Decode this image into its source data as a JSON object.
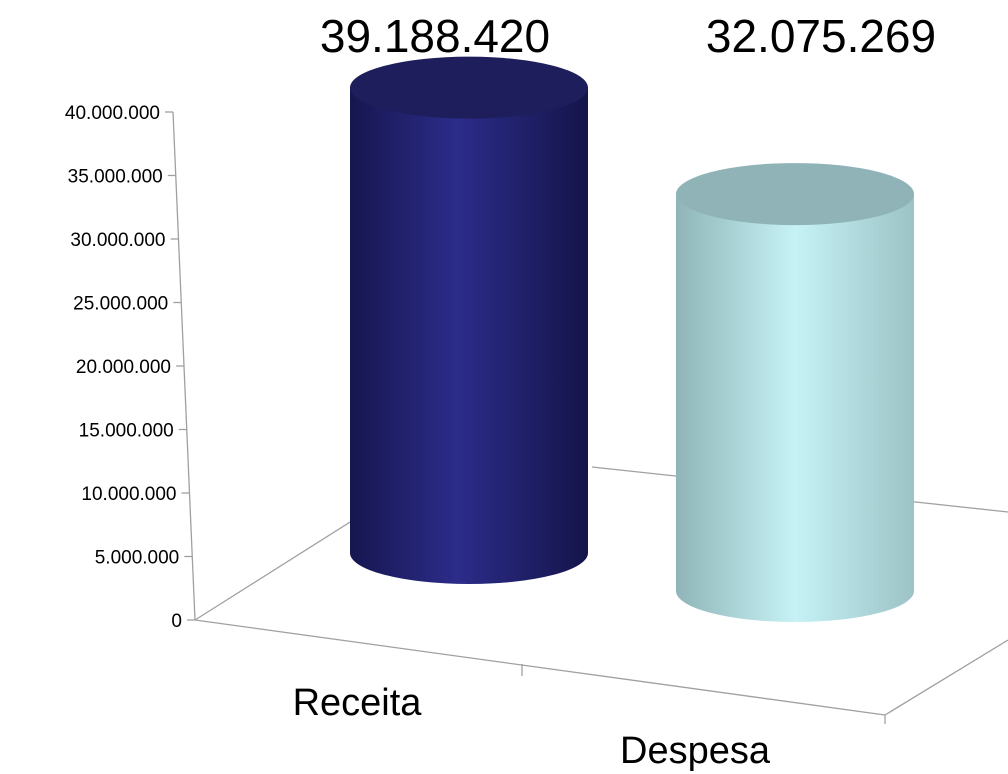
{
  "chart_data": {
    "type": "bar",
    "style": "3d-cylinder",
    "categories": [
      "Receita",
      "Despesa"
    ],
    "values": [
      39188420,
      32075269
    ],
    "data_labels": [
      "39.188.420",
      "32.075.269"
    ],
    "ylim": [
      0,
      40000000
    ],
    "yticks": [
      "0",
      "5.000.000",
      "10.000.000",
      "15.000.000",
      "20.000.000",
      "25.000.000",
      "30.000.000",
      "35.000.000",
      "40.000.000"
    ],
    "grid": false,
    "colors": [
      "#23236e",
      "#b8ecf0"
    ]
  }
}
